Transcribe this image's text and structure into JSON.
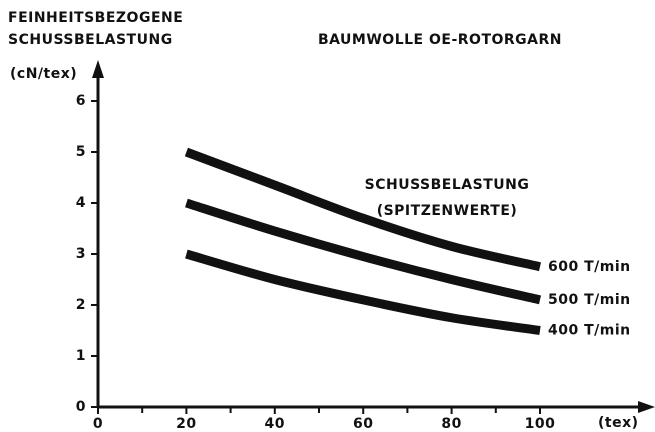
{
  "chart_data": {
    "type": "line",
    "title": "BAUMWOLLE OE-ROTORGARN",
    "ylabel": [
      "FEINHEITSBEZOGENE",
      "SCHUSSBELASTUNG"
    ],
    "yunit": "(cN/tex)",
    "xunit": "(tex)",
    "annotation": [
      "SCHUSSBELASTUNG",
      "(SPITZENWERTE)"
    ],
    "x": [
      20,
      40,
      60,
      80,
      100
    ],
    "series": [
      {
        "name": "600 T/min",
        "color": "#111111",
        "values": [
          5.0,
          4.35,
          3.7,
          3.15,
          2.75
        ]
      },
      {
        "name": "500 T/min",
        "color": "#111111",
        "values": [
          4.0,
          3.45,
          2.95,
          2.5,
          2.1
        ]
      },
      {
        "name": "400 T/min",
        "color": "#111111",
        "values": [
          3.0,
          2.5,
          2.1,
          1.75,
          1.5
        ]
      }
    ],
    "xlim": [
      0,
      126
    ],
    "ylim": [
      0,
      6.7
    ],
    "xticks": [
      0,
      20,
      40,
      60,
      80,
      100
    ],
    "xticks_minor": [
      10,
      30,
      50,
      70,
      90
    ],
    "yticks": [
      0,
      1,
      2,
      3,
      4,
      5,
      6
    ]
  }
}
